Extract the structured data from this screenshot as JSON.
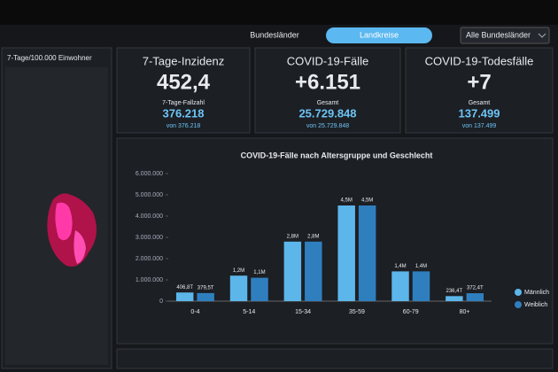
{
  "tabs": [
    "Bundesländer",
    "Landkreise"
  ],
  "filter": "Alle Bundesländer",
  "map": {
    "legend": "7-Tage/100.000 Einwohner"
  },
  "cards": [
    {
      "title": "7-Tage-Inzidenz",
      "value": "452,4",
      "sub_label": "7-Tage-Fallzahl",
      "sub_value": "376.218",
      "note": "von 376.218"
    },
    {
      "title": "COVID-19-Fälle",
      "value": "+6.151",
      "sub_label": "Gesamt",
      "sub_value": "25.729.848",
      "note": "von 25.729.848"
    },
    {
      "title": "COVID-19-Todesfälle",
      "value": "+7",
      "sub_label": "Gesamt",
      "sub_value": "137.499",
      "note": "von 137.499"
    }
  ],
  "chart_data": {
    "type": "bar",
    "title": "COVID-19-Fälle nach Altersgruppe und Geschlecht",
    "categories": [
      "0-4",
      "5-14",
      "15-34",
      "35-59",
      "60-79",
      "80+"
    ],
    "series": [
      {
        "name": "Männlich",
        "color": "#5cb6ea",
        "values": [
          406800,
          1200000,
          2800000,
          4500000,
          1400000,
          236400
        ],
        "value_labels": [
          "406,8T",
          "1,2M",
          "2,8M",
          "4,5M",
          "1,4M",
          "236,4T"
        ]
      },
      {
        "name": "Weiblich",
        "color": "#2f7fbf",
        "values": [
          379500,
          1100000,
          2800000,
          4500000,
          1400000,
          372400
        ],
        "value_labels": [
          "379,5T",
          "1,1M",
          "2,8M",
          "4,5M",
          "1,4M",
          "372,4T"
        ]
      }
    ],
    "ylim": [
      0,
      6000000
    ],
    "yticks": [
      0,
      {
        "value": 1000000,
        "label": "1.000.000"
      },
      {
        "value": 2000000,
        "label": "2.000.000"
      },
      {
        "value": 3000000,
        "label": "3.000.000"
      },
      {
        "value": 4000000,
        "label": "4.000.000"
      },
      {
        "value": 5000000,
        "label": "5.000.000"
      },
      {
        "value": 6000000,
        "label": "6.000.000"
      }
    ],
    "grid": false,
    "legend": "right"
  }
}
